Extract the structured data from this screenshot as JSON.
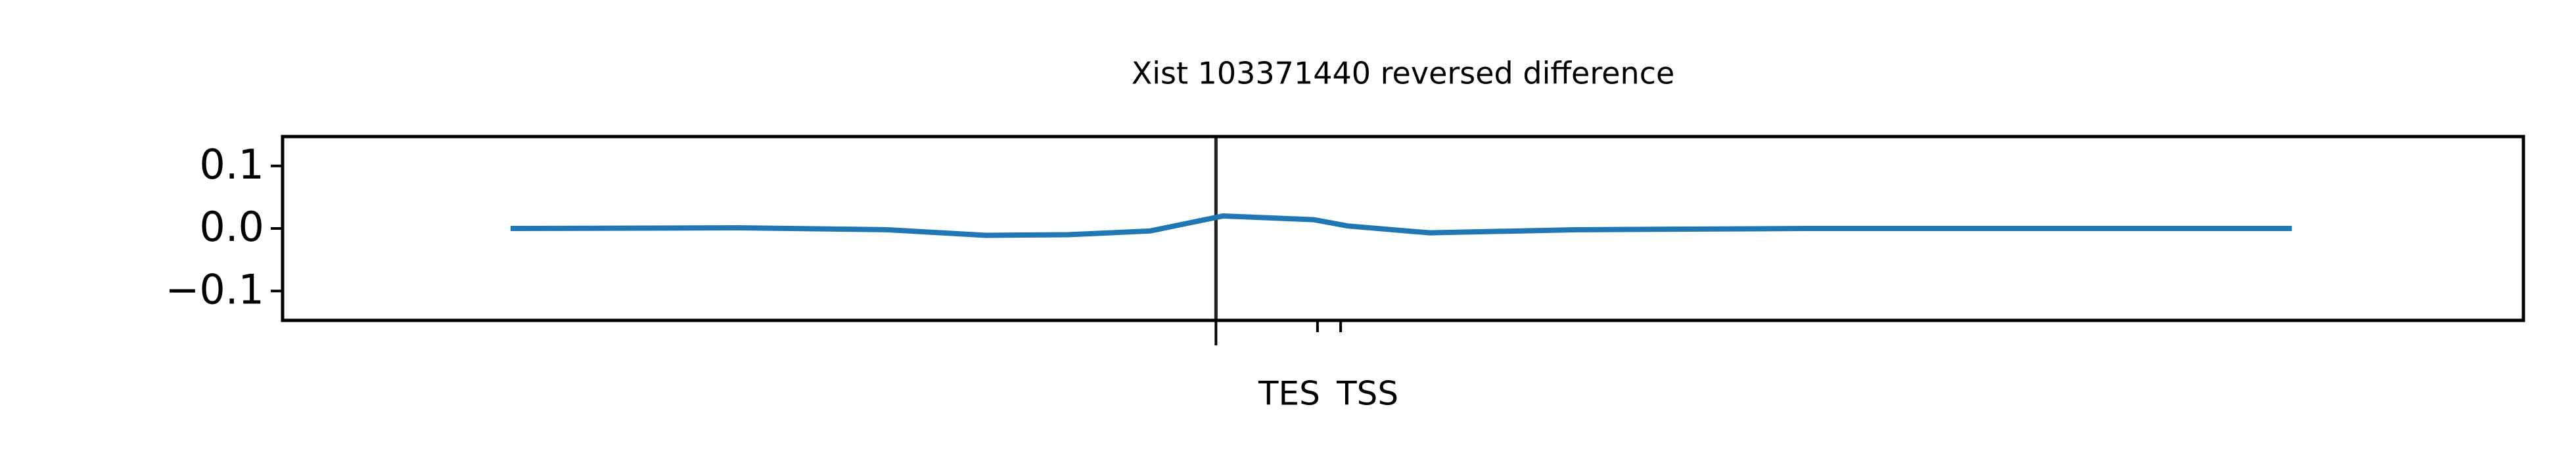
{
  "chart_data": {
    "type": "line",
    "title": "Xist 103371440 reversed difference",
    "x": [
      0,
      128,
      211,
      267,
      313,
      359,
      400,
      451,
      470,
      516,
      599,
      728,
      1000
    ],
    "series": [
      {
        "color": "#1f77b4",
        "values": [
          0,
          0.001,
          -0.002,
          -0.011,
          -0.01,
          -0.004,
          0.02,
          0.014,
          0.004,
          -0.007,
          -0.002,
          0,
          0
        ]
      }
    ],
    "xlim": [
      -128,
      1130
    ],
    "xticks": [
      {
        "value": 453,
        "label": "TES"
      },
      {
        "value": 466,
        "label": "TSS"
      }
    ],
    "vline": 396,
    "ylim": [
      -0.147,
      0.147
    ],
    "yticks": [
      {
        "value": 0.1,
        "label": "0.1"
      },
      {
        "value": 0,
        "label": "0.0"
      },
      {
        "value": -0.1,
        "label": "−0.1"
      }
    ]
  }
}
